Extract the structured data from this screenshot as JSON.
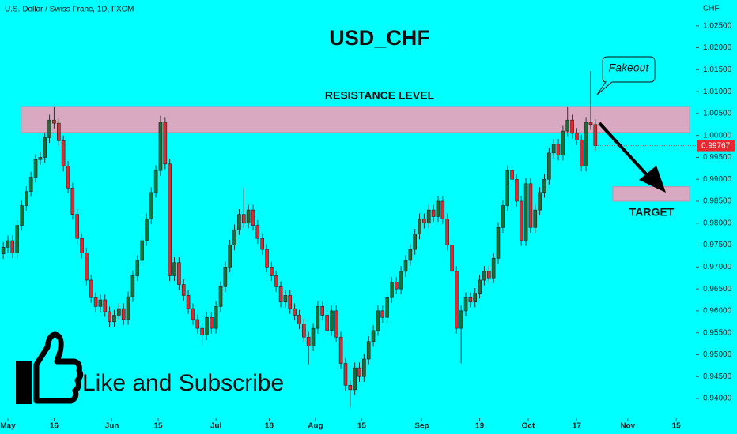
{
  "chart_data": {
    "type": "candlestick",
    "header": "U.S. Dollar / Swiss Franc, 1D, FXCM",
    "title": "USD_CHF",
    "currency": "CHF",
    "annotations": {
      "fakeout": "Fakeout",
      "cta": "Like and Subscribe"
    },
    "zones": [
      {
        "label": "RESISTANCE LEVEL",
        "range": [
          1.0007,
          1.0066
        ],
        "color": "#d8a9c0"
      },
      {
        "label": "TARGET",
        "range": [
          0.985,
          0.9883
        ],
        "color": "#d8a9c0"
      }
    ],
    "up_color": "#1f6b32",
    "down_color": "#e0282e",
    "last_color": "#e8282e",
    "open": [
      0.973,
      0.9745,
      0.976,
      0.9732,
      0.9795,
      0.984,
      0.9872,
      0.9905,
      0.9945,
      0.995,
      0.9995,
      1.0035,
      1.0028,
      0.9988,
      0.993,
      0.988,
      0.982,
      0.9765,
      0.9732,
      0.967,
      0.963,
      0.961,
      0.9625,
      0.9598,
      0.9575,
      0.959,
      0.9605,
      0.958,
      0.9632,
      0.968,
      0.9715,
      0.976,
      0.981,
      0.987,
      0.992,
      1.003,
      0.9935,
      0.968,
      0.971,
      0.966,
      0.9635,
      0.9605,
      0.958,
      0.956,
      0.9545,
      0.9585,
      0.956,
      0.961,
      0.9655,
      0.97,
      0.975,
      0.9785,
      0.982,
      0.98,
      0.983,
      0.9795,
      0.9765,
      0.974,
      0.97,
      0.968,
      0.9655,
      0.962,
      0.9635,
      0.9605,
      0.959,
      0.957,
      0.954,
      0.952,
      0.956,
      0.961,
      0.959,
      0.9555,
      0.96,
      0.954,
      0.948,
      0.943,
      0.942,
      0.947,
      0.945,
      0.949,
      0.953,
      0.9555,
      0.96,
      0.9585,
      0.963,
      0.9665,
      0.965,
      0.969,
      0.9715,
      0.974,
      0.9775,
      0.981,
      0.98,
      0.983,
      0.9815,
      0.985,
      0.981,
      0.975,
      0.969,
      0.956,
      0.96,
      0.963,
      0.962,
      0.964,
      0.967,
      0.969,
      0.9675,
      0.972,
      0.979,
      0.984,
      0.992,
      0.99,
      0.985,
      0.976,
      0.989,
      0.979,
      0.983,
      0.987,
      0.99,
      0.996,
      0.998,
      0.9955,
      1.001,
      1.0035,
      1.0005,
      0.999,
      0.993,
      1.003,
      1.0025
    ],
    "high": [
      0.9757,
      0.9772,
      0.9772,
      0.9807,
      0.9852,
      0.9884,
      0.9917,
      0.9957,
      0.9962,
      1.0007,
      1.0047,
      1.0066,
      1.004,
      1.0,
      0.9942,
      0.9892,
      0.9832,
      0.9777,
      0.9744,
      0.9682,
      0.9642,
      0.9637,
      0.9637,
      0.961,
      0.9602,
      0.9617,
      0.9617,
      0.9644,
      0.9692,
      0.9727,
      0.9772,
      0.9822,
      0.9882,
      0.9932,
      1.0045,
      1.0042,
      0.9947,
      0.9722,
      0.9722,
      0.9672,
      0.9647,
      0.9617,
      0.9592,
      0.9572,
      0.9597,
      0.9597,
      0.9622,
      0.9667,
      0.9712,
      0.9762,
      0.9797,
      0.9832,
      0.988,
      0.9842,
      0.9842,
      0.9807,
      0.9777,
      0.9752,
      0.9712,
      0.9692,
      0.9667,
      0.9647,
      0.9647,
      0.9617,
      0.9602,
      0.9582,
      0.9552,
      0.9572,
      0.9622,
      0.9622,
      0.9602,
      0.9612,
      0.9612,
      0.9552,
      0.9492,
      0.9442,
      0.9482,
      0.9482,
      0.9502,
      0.9542,
      0.9567,
      0.9612,
      0.9612,
      0.9642,
      0.9677,
      0.9677,
      0.9702,
      0.9727,
      0.9752,
      0.9787,
      0.9822,
      0.9822,
      0.9842,
      0.9842,
      0.9862,
      0.9862,
      0.9822,
      0.9762,
      0.9702,
      0.9612,
      0.9642,
      0.9642,
      0.9652,
      0.9682,
      0.9702,
      0.9702,
      0.9732,
      0.9802,
      0.9852,
      0.9932,
      0.9932,
      0.9912,
      0.9862,
      0.9902,
      0.9902,
      0.9842,
      0.9882,
      0.9912,
      0.9972,
      0.9992,
      0.9992,
      1.0022,
      1.0066,
      1.0047,
      1.0017,
      1.0002,
      1.0042,
      1.0147,
      1.0037
    ],
    "low": [
      0.9718,
      0.9733,
      0.972,
      0.972,
      0.9783,
      0.9828,
      0.986,
      0.9893,
      0.9933,
      0.9938,
      0.9983,
      1.0016,
      0.9976,
      0.9918,
      0.9868,
      0.9808,
      0.9753,
      0.972,
      0.9658,
      0.9618,
      0.9598,
      0.9598,
      0.9586,
      0.9563,
      0.9563,
      0.9578,
      0.9568,
      0.9568,
      0.962,
      0.9668,
      0.9703,
      0.9748,
      0.9798,
      0.9858,
      0.9908,
      0.9923,
      0.9668,
      0.9668,
      0.9648,
      0.9623,
      0.9593,
      0.9568,
      0.9548,
      0.952,
      0.9533,
      0.9548,
      0.9548,
      0.9598,
      0.9643,
      0.9688,
      0.9738,
      0.9773,
      0.9788,
      0.9788,
      0.9783,
      0.9753,
      0.9728,
      0.9688,
      0.9668,
      0.9643,
      0.9608,
      0.9608,
      0.9593,
      0.9578,
      0.9558,
      0.9528,
      0.9478,
      0.9508,
      0.9548,
      0.9578,
      0.9543,
      0.9543,
      0.9528,
      0.9468,
      0.9418,
      0.938,
      0.9408,
      0.9438,
      0.9438,
      0.9478,
      0.9518,
      0.9543,
      0.9573,
      0.9573,
      0.9618,
      0.9638,
      0.9638,
      0.9678,
      0.9703,
      0.9728,
      0.9763,
      0.9788,
      0.9788,
      0.9803,
      0.9803,
      0.9798,
      0.9738,
      0.9678,
      0.9548,
      0.948,
      0.9588,
      0.9608,
      0.9608,
      0.9628,
      0.9658,
      0.9663,
      0.9663,
      0.9708,
      0.9778,
      0.9828,
      0.9888,
      0.9838,
      0.9748,
      0.9748,
      0.9778,
      0.9778,
      0.9818,
      0.9858,
      0.9888,
      0.9948,
      0.9943,
      0.9943,
      0.9998,
      0.9993,
      0.9978,
      0.9918,
      0.9918,
      1.0013,
      0.9965
    ],
    "close": [
      0.9745,
      0.976,
      0.9732,
      0.9795,
      0.984,
      0.9872,
      0.9905,
      0.9945,
      0.995,
      0.9995,
      1.0035,
      1.0028,
      0.9988,
      0.993,
      0.988,
      0.982,
      0.9765,
      0.9732,
      0.967,
      0.963,
      0.961,
      0.9625,
      0.9598,
      0.9575,
      0.959,
      0.9605,
      0.958,
      0.9632,
      0.968,
      0.9715,
      0.976,
      0.981,
      0.987,
      0.992,
      1.003,
      0.9935,
      0.968,
      0.971,
      0.966,
      0.9635,
      0.9605,
      0.958,
      0.956,
      0.9545,
      0.9585,
      0.956,
      0.961,
      0.9655,
      0.97,
      0.975,
      0.9785,
      0.982,
      0.98,
      0.983,
      0.9795,
      0.9765,
      0.974,
      0.97,
      0.968,
      0.9655,
      0.962,
      0.9635,
      0.9605,
      0.959,
      0.957,
      0.954,
      0.952,
      0.956,
      0.961,
      0.959,
      0.9555,
      0.96,
      0.954,
      0.948,
      0.943,
      0.942,
      0.947,
      0.945,
      0.949,
      0.953,
      0.9555,
      0.96,
      0.9585,
      0.963,
      0.9665,
      0.965,
      0.969,
      0.9715,
      0.974,
      0.9775,
      0.981,
      0.98,
      0.983,
      0.9815,
      0.985,
      0.981,
      0.975,
      0.969,
      0.956,
      0.96,
      0.963,
      0.962,
      0.964,
      0.967,
      0.969,
      0.9675,
      0.972,
      0.979,
      0.984,
      0.992,
      0.99,
      0.985,
      0.976,
      0.989,
      0.979,
      0.983,
      0.987,
      0.99,
      0.996,
      0.998,
      0.9955,
      1.001,
      1.0035,
      1.0005,
      0.999,
      0.993,
      1.003,
      1.0025,
      0.99767
    ],
    "xlim": [
      -0.7,
      149.4
    ],
    "xticks": [
      {
        "value": 1,
        "label": "May"
      },
      {
        "value": 11,
        "label": "16"
      },
      {
        "value": 23.5,
        "label": "Jun"
      },
      {
        "value": 33.5,
        "label": "15"
      },
      {
        "value": 46,
        "label": "Jul"
      },
      {
        "value": 57.5,
        "label": "18"
      },
      {
        "value": 67.5,
        "label": "Aug"
      },
      {
        "value": 77.5,
        "label": "15"
      },
      {
        "value": 90.5,
        "label": "Sep"
      },
      {
        "value": 103,
        "label": "19"
      },
      {
        "value": 113.5,
        "label": "Oct"
      },
      {
        "value": 124,
        "label": "17"
      },
      {
        "value": 135,
        "label": "Nov"
      },
      {
        "value": 145.5,
        "label": "15"
      }
    ],
    "ylim": [
      0.9355,
      1.0309
    ],
    "yticks": [
      {
        "value": 0.94,
        "label": "0.94000"
      },
      {
        "value": 0.945,
        "label": "0.94500"
      },
      {
        "value": 0.95,
        "label": "0.95000"
      },
      {
        "value": 0.955,
        "label": "0.95500"
      },
      {
        "value": 0.96,
        "label": "0.96000"
      },
      {
        "value": 0.965,
        "label": "0.96500"
      },
      {
        "value": 0.97,
        "label": "0.97000"
      },
      {
        "value": 0.975,
        "label": "0.97500"
      },
      {
        "value": 0.98,
        "label": "0.98000"
      },
      {
        "value": 0.985,
        "label": "0.98500"
      },
      {
        "value": 0.99,
        "label": "0.99000"
      },
      {
        "value": 0.995,
        "label": "0.99500"
      },
      {
        "value": 1.0,
        "label": "1.00000"
      },
      {
        "value": 1.005,
        "label": "1.00500"
      },
      {
        "value": 1.01,
        "label": "1.01000"
      },
      {
        "value": 1.015,
        "label": "1.01500"
      },
      {
        "value": 1.02,
        "label": "1.02000"
      },
      {
        "value": 1.025,
        "label": "1.02500"
      }
    ]
  }
}
